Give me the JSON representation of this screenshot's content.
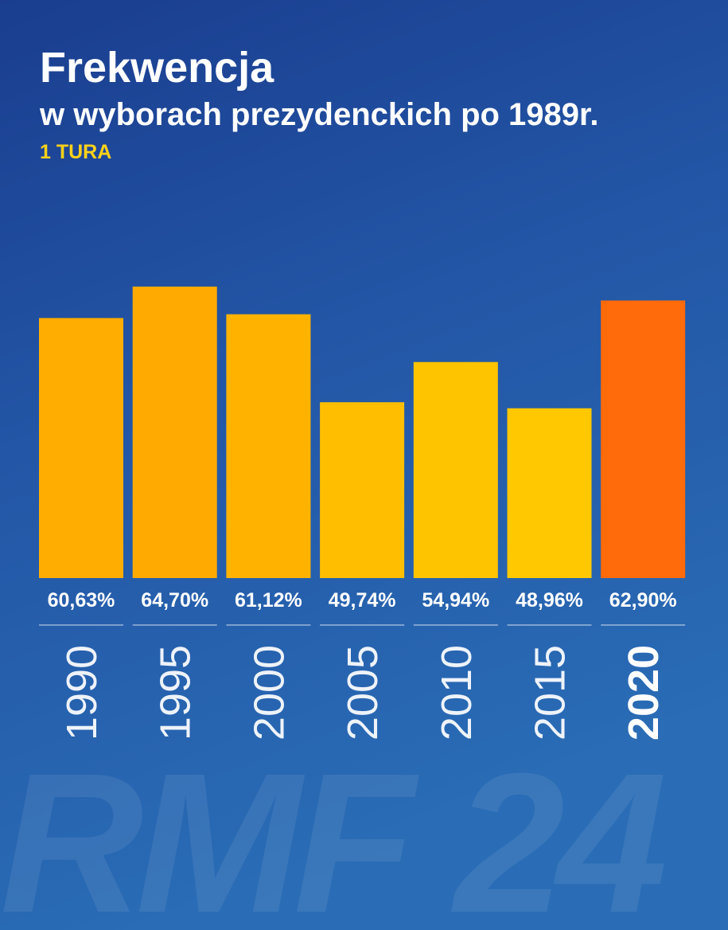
{
  "chart_data": {
    "type": "bar",
    "title": "Frekwencja",
    "subtitle": "w wyborach prezydenckich po 1989r.",
    "label": "1 TURA",
    "watermark": "RMF 24",
    "categories": [
      "1990",
      "1995",
      "2000",
      "2005",
      "2010",
      "2015",
      "2020"
    ],
    "values": [
      60.63,
      64.7,
      61.12,
      49.74,
      54.94,
      48.96,
      62.9
    ],
    "value_labels": [
      "60,63%",
      "64,70%",
      "61,12%",
      "49,74%",
      "54,94%",
      "48,96%",
      "62,90%"
    ],
    "colors": [
      "#ffad00",
      "#ffaa00",
      "#ffb300",
      "#ffbf00",
      "#ffc400",
      "#ffc800",
      "#ff6a0a"
    ],
    "bold_categories": [
      false,
      false,
      false,
      false,
      false,
      false,
      true
    ],
    "ylim": [
      27,
      65
    ]
  }
}
